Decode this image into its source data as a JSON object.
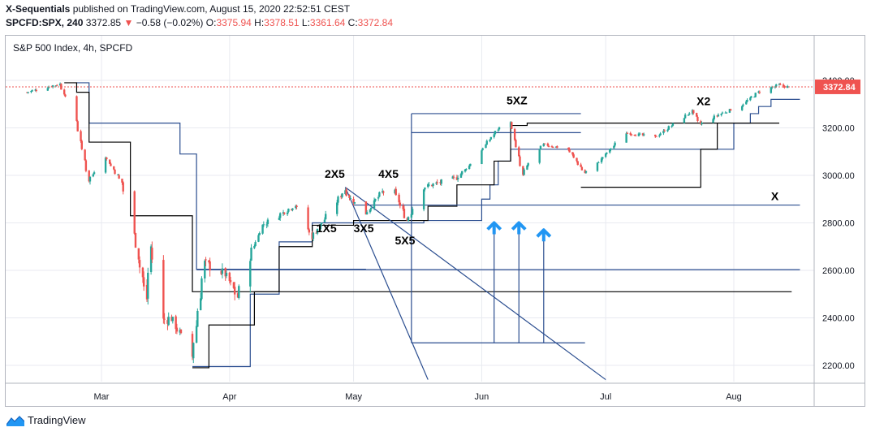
{
  "header": {
    "author": "X-Sequentials",
    "published_text": " published on TradingView.com, August 15, 2020 22:52:51 CEST",
    "symbol": "SPCFD:SPX, 240",
    "last_price": "3372.85",
    "change": "−0.58 (−0.02%)",
    "o_label": "O:",
    "o_value": "3375.94",
    "h_label": "H:",
    "h_value": "3378.51",
    "l_label": "L:",
    "l_value": "3361.64",
    "c_label": "C:",
    "c_value": "3372.84"
  },
  "pane_title": "S&P 500 Index, 4h, SPCFD",
  "price_tag": "3372.84",
  "footer": {
    "brand": "TradingView"
  },
  "colors": {
    "up": "#26a69a",
    "down": "#ef5350",
    "blue_line": "#2a4d8f",
    "black_line": "#000000",
    "arrow": "#2196f3"
  },
  "chart_data": {
    "type": "candlestick",
    "title": "S&P 500 Index, 4h, SPCFD",
    "x_ticks": [
      "Mar",
      "Apr",
      "May",
      "Jun",
      "Jul",
      "Aug"
    ],
    "y_ticks": [
      "2200.00",
      "2400.00",
      "2600.00",
      "2800.00",
      "3000.00",
      "3200.00",
      "3400.00"
    ],
    "ylim": [
      2140,
      3520
    ],
    "last_close": 3372.84,
    "annotations": [
      "5XZ",
      "X2",
      "2X5",
      "4X5",
      "1X5",
      "3X5",
      "5X5",
      "X"
    ],
    "horizontal_levels": [
      2875,
      2603,
      2508,
      3218
    ],
    "close_path": [
      [
        "2020-02-12",
        3350
      ],
      [
        "2020-02-20",
        3385
      ],
      [
        "2020-02-24",
        3230
      ],
      [
        "2020-02-27",
        2980
      ],
      [
        "2020-03-02",
        3080
      ],
      [
        "2020-03-06",
        2970
      ],
      [
        "2020-03-09",
        2750
      ],
      [
        "2020-03-12",
        2480
      ],
      [
        "2020-03-13",
        2700
      ],
      [
        "2020-03-16",
        2390
      ],
      [
        "2020-03-18",
        2400
      ],
      [
        "2020-03-23",
        2237
      ],
      [
        "2020-03-26",
        2630
      ],
      [
        "2020-03-31",
        2585
      ],
      [
        "2020-04-03",
        2488
      ],
      [
        "2020-04-06",
        2660
      ],
      [
        "2020-04-09",
        2790
      ],
      [
        "2020-04-17",
        2875
      ],
      [
        "2020-04-21",
        2740
      ],
      [
        "2020-04-29",
        2940
      ],
      [
        "2020-04-30",
        2910
      ],
      [
        "2020-05-04",
        2840
      ],
      [
        "2020-05-08",
        2930
      ],
      [
        "2020-05-11",
        2930
      ],
      [
        "2020-05-14",
        2810
      ],
      [
        "2020-05-18",
        2950
      ],
      [
        "2020-05-26",
        2990
      ],
      [
        "2020-05-29",
        3040
      ],
      [
        "2020-06-05",
        3195
      ],
      [
        "2020-06-08",
        3230
      ],
      [
        "2020-06-11",
        3000
      ],
      [
        "2020-06-12",
        3040
      ],
      [
        "2020-06-16",
        3130
      ],
      [
        "2020-06-22",
        3110
      ],
      [
        "2020-06-26",
        3010
      ],
      [
        "2020-06-29",
        3050
      ],
      [
        "2020-07-06",
        3180
      ],
      [
        "2020-07-13",
        3160
      ],
      [
        "2020-07-22",
        3270
      ],
      [
        "2020-07-24",
        3215
      ],
      [
        "2020-07-29",
        3260
      ],
      [
        "2020-08-03",
        3295
      ],
      [
        "2020-08-07",
        3350
      ],
      [
        "2020-08-12",
        3380
      ],
      [
        "2020-08-14",
        3372.84
      ]
    ],
    "arrows": [
      [
        "2020-06-04",
        2800
      ],
      [
        "2020-06-10",
        2800
      ],
      [
        "2020-06-16",
        2770
      ]
    ]
  }
}
